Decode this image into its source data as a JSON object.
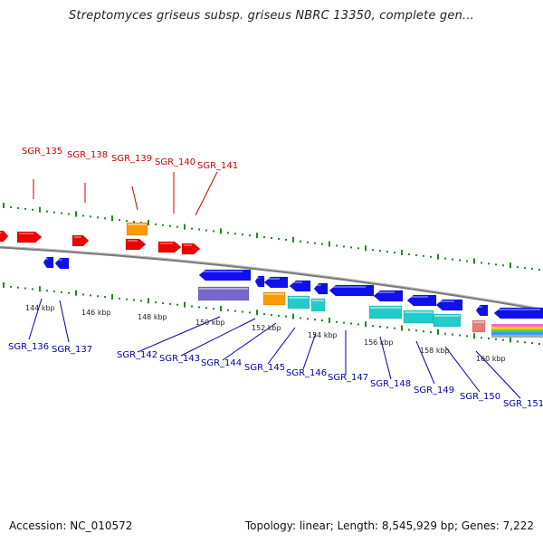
{
  "title": "Streptomyces griseus subsp. griseus NBRC 13350, complete gen...",
  "footer": {
    "accession": "Accession: NC_010572",
    "stats": "Topology: linear; Length: 8,545,929 bp; Genes: 7,222"
  },
  "colors": {
    "forward_gene": "#ee0000",
    "reverse_gene": "#1010ee",
    "backbone": "#888888",
    "tick": "#228822",
    "orange": "#ff9900",
    "cyan": "#22cccc",
    "purple": "#7766cc",
    "pink": "#ee7777",
    "label_red": "#cc0000",
    "label_blue": "#0000aa"
  },
  "top_labels": [
    "SGR_135",
    "SGR_138",
    "SGR_139",
    "SGR_140",
    "SGR_141"
  ],
  "bottom_labels": [
    "SGR_136",
    "SGR_137",
    "SGR_142",
    "SGR_143",
    "SGR_144",
    "SGR_145",
    "SGR_146",
    "SGR_147",
    "SGR_148",
    "SGR_149",
    "SGR_150",
    "SGR_151"
  ],
  "scale_labels": [
    "144 kbp",
    "146 kbp",
    "148 kbp",
    "150 kbp",
    "152 kbp",
    "154 kbp",
    "156 kbp",
    "158 kbp",
    "160 kbp"
  ]
}
